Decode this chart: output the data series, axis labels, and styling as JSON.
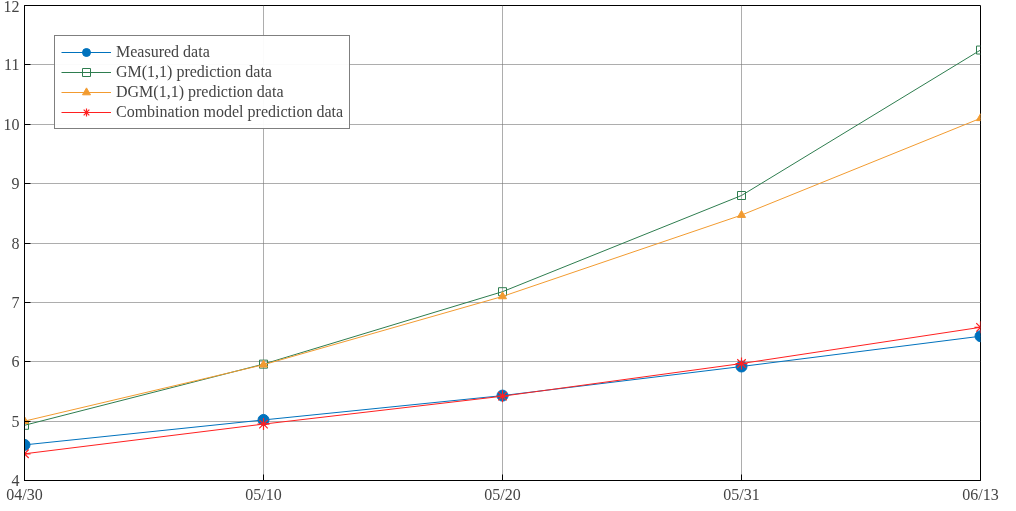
{
  "chart_data": {
    "type": "line",
    "categories": [
      "04/30",
      "05/10",
      "05/20",
      "05/31",
      "06/13"
    ],
    "ylim": [
      4,
      12
    ],
    "yticks": [
      4,
      5,
      6,
      7,
      8,
      9,
      10,
      11,
      12
    ],
    "grid": true,
    "legend": "top left",
    "series": [
      {
        "name": "Measured data",
        "color": "#0072bd",
        "marker": "circle",
        "values": [
          4.6,
          5.02,
          5.43,
          5.92,
          6.43
        ]
      },
      {
        "name": "GM(1,1) prediction data",
        "color": "#2e7d4f",
        "marker": "square",
        "values": [
          4.93,
          5.96,
          7.18,
          8.8,
          11.25
        ]
      },
      {
        "name": "DGM(1,1) prediction data",
        "color": "#f29b30",
        "marker": "triangle",
        "values": [
          5.0,
          5.95,
          7.1,
          8.47,
          10.1
        ]
      },
      {
        "name": "Combination model prediction data",
        "color": "#ff2020",
        "marker": "cross",
        "values": [
          4.45,
          4.95,
          5.42,
          5.97,
          6.58
        ]
      }
    ]
  }
}
